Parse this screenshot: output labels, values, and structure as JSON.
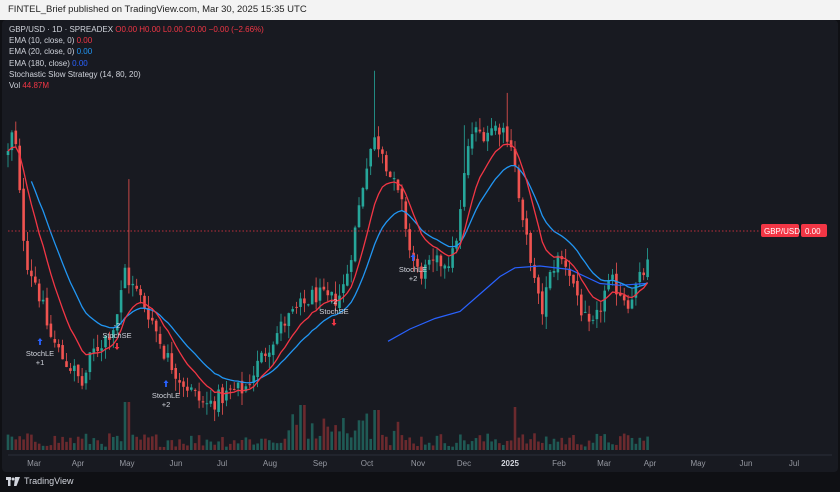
{
  "header": {
    "published_line": "FINTEL_Brief published on TradingView.com, Mar 30, 2025 15:35 UTC"
  },
  "legend": {
    "symbol": "GBP/USD · 1D · SPREADEX",
    "ohlc": "O0.00  H0.00  L0.00  C0.00  −0.00 (−2.66%)",
    "ema10_label": "EMA (10, close, 0)",
    "ema10_value": "0.00",
    "ema20_label": "EMA (20, close, 0)",
    "ema20_value": "0.00",
    "ema180_label": "EMA (180, close)",
    "ema180_value": "0.00",
    "strategy_label": "Stochastic Slow Strategy (14, 80, 20)",
    "vol_label": "Vol",
    "vol_value": "44.87M"
  },
  "price_tag": {
    "symbol": "GBP/USD",
    "value": "0.00"
  },
  "footer": {
    "brand": "TradingView"
  },
  "colors": {
    "up": "#26a69a",
    "down": "#ef5350",
    "ema_fast": "#f23645",
    "ema_mid": "#2196f3",
    "ema_slow": "#2962ff",
    "background": "#181a21"
  },
  "chart_data": {
    "type": "candlestick",
    "x_ticks": [
      "Mar",
      "Apr",
      "May",
      "Jun",
      "Jul",
      "Aug",
      "Sep",
      "Oct",
      "Nov",
      "Dec",
      "2025",
      "Feb",
      "Mar",
      "Apr",
      "May",
      "Jun",
      "Jul"
    ],
    "y_values_visible": false,
    "close_path_description": "",
    "close_points": [
      [
        "Mar",
        7.8
      ],
      [
        "Mar",
        4.6
      ],
      [
        "Apr",
        1.7
      ],
      [
        "May",
        4.1
      ],
      [
        "Jun",
        2.0
      ],
      [
        "Jul",
        0.7
      ],
      [
        "Aug",
        1.2
      ],
      [
        "Sep",
        3.8
      ],
      [
        "Oct",
        8.6
      ],
      [
        "Oct",
        7.9
      ],
      [
        "Nov",
        4.8
      ],
      [
        "Dec",
        8.4
      ],
      [
        "2025",
        8.8
      ],
      [
        "2025",
        6.1
      ],
      [
        "Feb",
        4.2
      ],
      [
        "Mar",
        3.9
      ],
      [
        "Mar",
        5.0
      ],
      [
        "Apr",
        5.6
      ]
    ],
    "annotations": [
      {
        "label": "StochLE",
        "value": "+1",
        "direction": "long"
      },
      {
        "label": "StochSE",
        "value": "-2",
        "direction": "short"
      },
      {
        "label": "StochLE",
        "value": "+2",
        "direction": "long"
      },
      {
        "label": "StochSE",
        "value": "-2",
        "direction": "short"
      },
      {
        "label": "StochLE",
        "value": "+2",
        "direction": "long"
      }
    ],
    "series": [
      {
        "name": "EMA (10, close, 0)"
      },
      {
        "name": "EMA (20, close, 0)"
      },
      {
        "name": "EMA (180, close)"
      }
    ],
    "grid": false
  }
}
